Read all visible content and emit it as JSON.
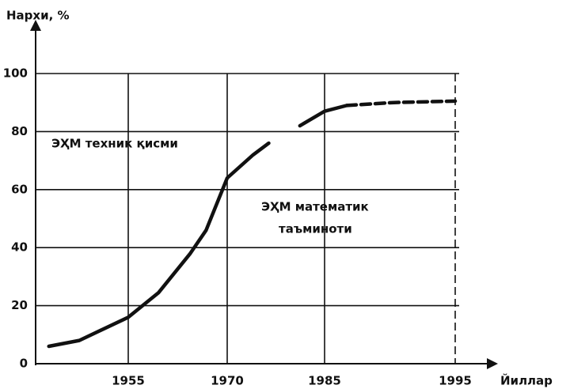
{
  "chart_data": {
    "type": "line",
    "y_label": "Нархи, %",
    "x_label": "Йиллар",
    "annotations": [
      "ЭҲМ техник қисми",
      "ЭҲМ математик",
      "таъминоти"
    ],
    "xlim": [
      1941,
      1995
    ],
    "xticks": [
      1955,
      1970,
      1985,
      1995
    ],
    "ylim": [
      0,
      100
    ],
    "yticks": [
      0,
      20,
      40,
      60,
      80,
      100
    ],
    "grid": true,
    "color": "#111111",
    "series": [
      {
        "style": "solid",
        "x": [
          1943,
          1947.6,
          1955,
          1959.6,
          1964.4,
          1966.8,
          1970,
          1974,
          1976.4,
          null,
          1981.2,
          1985,
          1986.7
        ],
        "values": [
          6,
          8,
          16,
          24.5,
          38,
          46,
          64,
          72,
          76,
          null,
          82,
          87,
          89
        ]
      },
      {
        "style": "dashed",
        "x": [
          1986.7,
          1990.3,
          1995
        ],
        "values": [
          89,
          90,
          90.5
        ]
      }
    ]
  }
}
